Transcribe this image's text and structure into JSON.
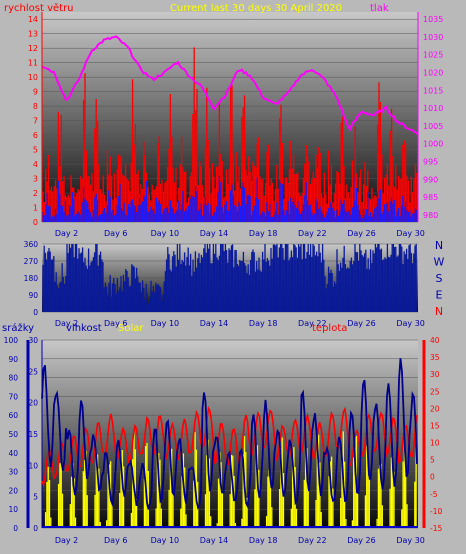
{
  "colors": {
    "wind": "#ff0000",
    "wind_avg": "#1a1aff",
    "pressure": "#ff00ff",
    "direction": "#0a1a99",
    "rain": "#0000cc",
    "humidity": "#00008b",
    "solar": "#ffff00",
    "temperature": "#ff0000",
    "title": "#ffff00",
    "legend_blue": "#0000b0"
  },
  "chart_data": [
    {
      "type": "bar",
      "title": "Current last 30 days 30 April 2020",
      "x_ticks": [
        "Day 2",
        "Day 6",
        "Day 10",
        "Day 14",
        "Day 18",
        "Day 22",
        "Day 26",
        "Day 30"
      ],
      "x_range_days": [
        0,
        30.6
      ],
      "y_left": {
        "label": "rychlost větru",
        "range": [
          0,
          14.5
        ],
        "ticks": [
          "0",
          "1",
          "2",
          "3",
          "4",
          "5",
          "6",
          "7",
          "8",
          "9",
          "10",
          "11",
          "12",
          "13",
          "14"
        ]
      },
      "y_right": {
        "label": "tlak",
        "range": [
          978,
          1037
        ],
        "ticks": [
          "980",
          "985",
          "990",
          "995",
          "1000",
          "1005",
          "1010",
          "1015",
          "1020",
          "1025",
          "1030",
          "1035"
        ]
      },
      "series": [
        {
          "name": "rychlost větru",
          "type": "bar",
          "axis": "left",
          "description_values": {
            "daily_max_gust": [
              7,
              9,
              6,
              11,
              9,
              8,
              10,
              12,
              9,
              7,
              9,
              8,
              14,
              10,
              9,
              11,
              12,
              10,
              8,
              9,
              11,
              10,
              9,
              7,
              8,
              9,
              7,
              10,
              9,
              8,
              7
            ]
          }
        },
        {
          "name": "",
          "type": "bar",
          "axis": "left",
          "daily_avg": [
            2,
            3,
            2,
            3,
            2,
            2,
            3,
            4,
            3,
            2,
            2,
            3,
            4,
            3,
            3,
            3,
            4,
            3,
            2,
            3,
            3,
            3,
            2,
            2,
            2,
            3,
            2,
            3,
            3,
            2,
            2
          ]
        },
        {
          "name": "tlak",
          "type": "line",
          "axis": "right",
          "days": [
            0,
            1,
            2,
            3,
            4,
            5,
            6,
            7,
            8,
            9,
            10,
            11,
            12,
            13,
            14,
            15,
            16,
            17,
            18,
            19,
            20,
            21,
            22,
            23,
            24,
            25,
            26,
            27,
            28,
            29,
            30
          ],
          "values": [
            1022,
            1020,
            1012,
            1018,
            1026,
            1029,
            1030,
            1027,
            1021,
            1018,
            1020,
            1023,
            1019,
            1016,
            1010,
            1014,
            1021,
            1019,
            1013,
            1011,
            1014,
            1019,
            1021,
            1018,
            1013,
            1004,
            1009,
            1008,
            1010,
            1006,
            1004
          ]
        }
      ]
    },
    {
      "type": "area",
      "title": "",
      "y_range": [
        0,
        360
      ],
      "y_ticks": [
        "0",
        "90",
        "180",
        "270",
        "360"
      ],
      "direction_labels": [
        "N",
        "W",
        "S",
        "E",
        "N"
      ],
      "x_ticks": [
        "Day 2",
        "Day 6",
        "Day 10",
        "Day 14",
        "Day 18",
        "Day 22",
        "Day 26",
        "Day 30"
      ],
      "series": [
        {
          "name": "",
          "type": "area",
          "days": [
            0,
            1,
            2,
            3,
            4,
            5,
            6,
            7,
            8,
            9,
            10,
            11,
            12,
            13,
            14,
            15,
            16,
            17,
            18,
            19,
            20,
            21,
            22,
            23,
            24,
            25,
            26,
            27,
            28,
            29,
            30
          ],
          "values": [
            300,
            180,
            330,
            270,
            300,
            120,
            150,
            180,
            100,
            80,
            270,
            300,
            240,
            310,
            330,
            280,
            250,
            260,
            300,
            330,
            310,
            320,
            300,
            180,
            270,
            300,
            250,
            320,
            330,
            310,
            300
          ]
        }
      ]
    },
    {
      "type": "line",
      "title": "",
      "x_ticks": [
        "Day 2",
        "Day 6",
        "Day 10",
        "Day 14",
        "Day 18",
        "Day 22",
        "Day 26",
        "Day 30"
      ],
      "axes": {
        "rain": {
          "label": "srážky",
          "range": [
            0,
            100
          ],
          "ticks": [
            "0",
            "10",
            "20",
            "30",
            "40",
            "50",
            "60",
            "70",
            "80",
            "90",
            "100"
          ]
        },
        "humidity": {
          "label": "vlhkost",
          "range": [
            0,
            30
          ],
          "ticks": [
            "0",
            "5",
            "10",
            "15",
            "20",
            "25",
            "30"
          ]
        },
        "temperature": {
          "label": "teplota",
          "range": [
            -15,
            40
          ],
          "ticks": [
            "-15",
            "-10",
            "-5",
            "0",
            "5",
            "10",
            "15",
            "20",
            "25",
            "30",
            "35",
            "40"
          ]
        }
      },
      "solar_label": "Solar",
      "series": [
        {
          "name": "srážky",
          "type": "line",
          "axis": "rain",
          "days": [
            0,
            30.6
          ],
          "values": [
            0,
            0
          ]
        },
        {
          "name": "vlhkost",
          "type": "line",
          "axis": "humidity",
          "daily_max": [
            26,
            22,
            16,
            20,
            15,
            12,
            14,
            11,
            10,
            16,
            17,
            14,
            10,
            22,
            15,
            12,
            13,
            18,
            20,
            16,
            14,
            22,
            18,
            13,
            15,
            19,
            24,
            20,
            23,
            27,
            22
          ],
          "daily_min": [
            10,
            9,
            5,
            8,
            6,
            4,
            5,
            4,
            3,
            4,
            5,
            4,
            3,
            6,
            5,
            4,
            3,
            5,
            6,
            5,
            4,
            6,
            5,
            4,
            4,
            5,
            7,
            6,
            7,
            8,
            6
          ]
        },
        {
          "name": "Solar",
          "type": "bar",
          "axis": "rain",
          "daily_peak": [
            35,
            42,
            40,
            48,
            50,
            45,
            52,
            55,
            53,
            50,
            47,
            44,
            55,
            58,
            50,
            52,
            56,
            55,
            40,
            52,
            54,
            57,
            50,
            48,
            55,
            58,
            52,
            45,
            50,
            54,
            56
          ]
        },
        {
          "name": "teplota",
          "type": "line",
          "axis": "temperature",
          "daily_max": [
            8,
            10,
            12,
            14,
            16,
            18,
            14,
            15,
            17,
            18,
            15,
            17,
            19,
            20,
            16,
            14,
            18,
            19,
            20,
            15,
            17,
            18,
            16,
            19,
            20,
            14,
            18,
            19,
            17,
            15,
            19
          ],
          "daily_min": [
            -2,
            0,
            2,
            3,
            4,
            6,
            5,
            4,
            6,
            7,
            6,
            5,
            7,
            8,
            4,
            3,
            5,
            7,
            8,
            5,
            6,
            7,
            5,
            6,
            8,
            3,
            6,
            7,
            6,
            4,
            6
          ]
        }
      ]
    }
  ]
}
